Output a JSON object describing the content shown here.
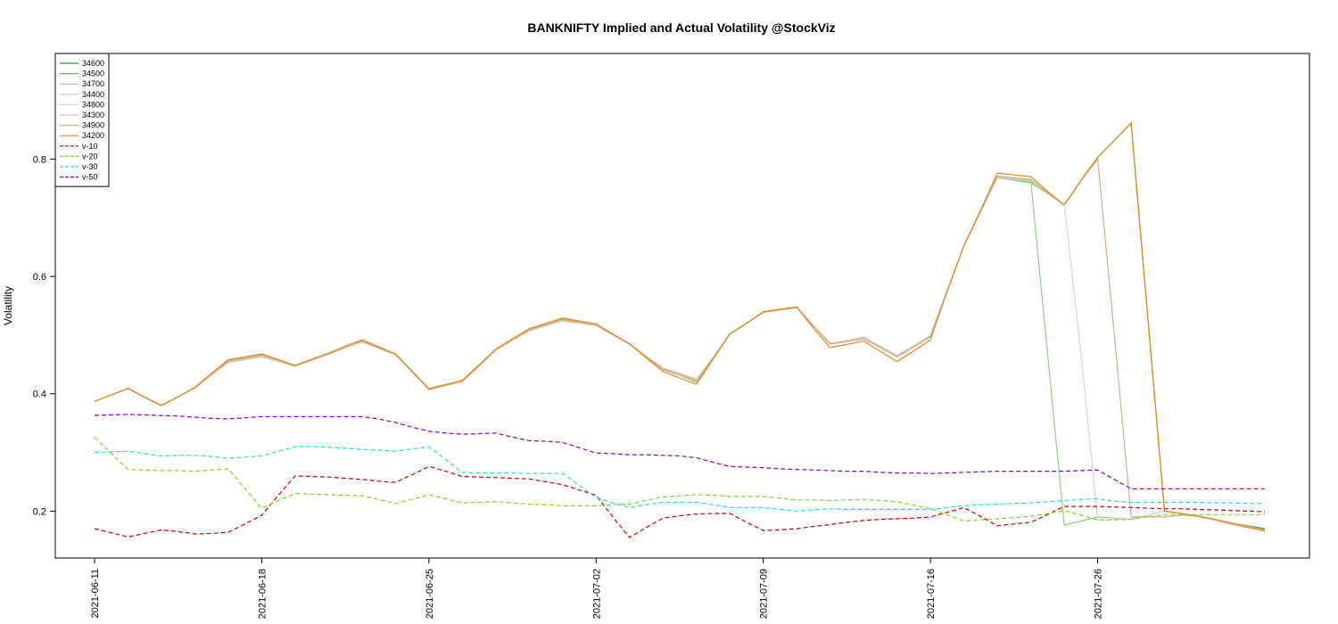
{
  "chart_data": {
    "type": "line",
    "title": "BANKNIFTY Implied and Actual Volatility @StockViz",
    "xlabel": "",
    "ylabel": "Volatility",
    "ylim": [
      0.12,
      0.98
    ],
    "yticks": [
      0.2,
      0.4,
      0.6,
      0.8
    ],
    "ytick_labels": [
      "0.2",
      "0.4",
      "0.6",
      "0.8"
    ],
    "xticks": [
      0,
      10,
      20,
      30,
      40,
      50,
      60
    ],
    "xtick_labels": [
      "2021-06-11",
      "2021-06-18",
      "2021-06-25",
      "2021-07-02",
      "2021-07-09",
      "2021-07-16",
      "2021-07-26"
    ],
    "x": [
      0,
      1,
      2,
      3,
      4,
      5,
      6,
      7,
      8,
      9,
      10,
      11,
      12,
      13,
      14,
      15,
      16,
      17,
      18,
      19,
      20,
      21,
      22,
      23,
      24,
      25,
      26,
      27,
      28,
      29,
      30,
      31,
      32,
      33,
      34,
      35,
      36,
      37,
      38,
      39,
      40,
      41,
      42,
      43,
      44,
      45,
      46,
      47,
      48,
      49,
      50,
      51,
      52,
      53,
      54,
      55,
      56,
      57,
      58,
      59,
      60,
      61,
      62,
      63,
      64,
      65,
      66,
      67,
      68,
      69,
      70
    ],
    "grid": false,
    "legend_position": "top-left",
    "series": [
      {
        "name": "34600",
        "color": "#1a9e35",
        "dash": "",
        "values": [
          0.387,
          0.398,
          0.409,
          0.394,
          0.38,
          0.395,
          0.41,
          0.434,
          0.456,
          0.461,
          0.466,
          0.457,
          0.448,
          0.459,
          0.469,
          0.481,
          0.49,
          0.479,
          0.468,
          0.438,
          0.409,
          0.416,
          0.422,
          0.449,
          0.476,
          0.493,
          0.509,
          0.518,
          0.527,
          0.523,
          0.518,
          0.501,
          0.485,
          0.463,
          0.441,
          0.432,
          0.42,
          0.461,
          0.502,
          0.52,
          0.539,
          0.543,
          0.547,
          0.516,
          0.485,
          0.489,
          0.494,
          0.479,
          0.463,
          0.48,
          0.497,
          0.575,
          0.652,
          0.711,
          0.769,
          0.766,
          0.763,
          0.742,
          0.722,
          0.763,
          0.803,
          0.832,
          0.86,
          0.53,
          0.2,
          0.196,
          0.192,
          0.186,
          0.18,
          0.175,
          0.17
        ]
      },
      {
        "name": "34500",
        "color": "#5cbf4d",
        "dash": "",
        "values": [
          0.387,
          0.398,
          0.409,
          0.394,
          0.38,
          0.395,
          0.41,
          0.433,
          0.455,
          0.46,
          0.465,
          0.456,
          0.448,
          0.458,
          0.468,
          0.48,
          0.489,
          0.478,
          0.468,
          0.438,
          0.409,
          0.416,
          0.422,
          0.449,
          0.476,
          0.493,
          0.509,
          0.518,
          0.526,
          0.522,
          0.518,
          0.501,
          0.485,
          0.463,
          0.442,
          0.433,
          0.422,
          0.461,
          0.502,
          0.52,
          0.539,
          0.543,
          0.547,
          0.516,
          0.486,
          0.489,
          0.495,
          0.48,
          0.464,
          0.48,
          0.498,
          0.576,
          0.652,
          0.711,
          0.768,
          0.764,
          0.76,
          0.741,
          0.722,
          0.763,
          0.803,
          0.832,
          0.86,
          0.53,
          0.2,
          0.196,
          0.192,
          0.186,
          0.18,
          0.174,
          0.168
        ]
      },
      {
        "name": "34700",
        "color": "#8fcf86",
        "dash": "",
        "values": [
          0.387,
          0.398,
          0.409,
          0.394,
          0.38,
          0.395,
          0.41,
          0.433,
          0.455,
          0.46,
          0.465,
          0.456,
          0.448,
          0.458,
          0.468,
          0.48,
          0.49,
          0.479,
          0.468,
          0.438,
          0.409,
          0.416,
          0.422,
          0.449,
          0.476,
          0.493,
          0.509,
          0.518,
          0.527,
          0.523,
          0.518,
          0.501,
          0.485,
          0.463,
          0.442,
          0.433,
          0.421,
          0.461,
          0.502,
          0.52,
          0.539,
          0.543,
          0.547,
          0.516,
          0.486,
          0.49,
          0.496,
          0.48,
          0.465,
          0.481,
          0.5,
          0.576,
          0.652,
          0.711,
          0.769,
          0.766,
          0.763,
          0.47,
          0.176,
          0.183,
          0.19,
          0.188,
          0.186,
          0.193,
          0.2,
          0.196,
          0.192,
          0.186,
          0.18,
          0.174,
          0.168
        ]
      },
      {
        "name": "34400",
        "color": "#b9d7b0",
        "dash": "",
        "values": [
          0.387,
          0.398,
          0.409,
          0.394,
          0.38,
          0.395,
          0.41,
          0.432,
          0.454,
          0.459,
          0.464,
          0.455,
          0.447,
          0.457,
          0.467,
          0.479,
          0.489,
          0.478,
          0.467,
          0.438,
          0.409,
          0.415,
          0.421,
          0.448,
          0.475,
          0.492,
          0.508,
          0.517,
          0.525,
          0.521,
          0.517,
          0.501,
          0.485,
          0.463,
          0.443,
          0.434,
          0.424,
          0.462,
          0.502,
          0.52,
          0.539,
          0.543,
          0.547,
          0.516,
          0.486,
          0.491,
          0.497,
          0.481,
          0.466,
          0.482,
          0.5,
          0.576,
          0.652,
          0.711,
          0.768,
          0.765,
          0.762,
          0.741,
          0.722,
          0.763,
          0.803,
          0.832,
          0.86,
          0.53,
          0.2,
          0.196,
          0.192,
          0.186,
          0.18,
          0.174,
          0.168
        ]
      },
      {
        "name": "34800",
        "color": "#d6d6d6",
        "dash": "",
        "values": [
          0.387,
          0.398,
          0.409,
          0.394,
          0.38,
          0.395,
          0.41,
          0.433,
          0.455,
          0.46,
          0.465,
          0.456,
          0.448,
          0.458,
          0.468,
          0.48,
          0.49,
          0.479,
          0.468,
          0.438,
          0.409,
          0.416,
          0.422,
          0.449,
          0.476,
          0.493,
          0.509,
          0.518,
          0.527,
          0.523,
          0.518,
          0.501,
          0.485,
          0.463,
          0.441,
          0.432,
          0.421,
          0.461,
          0.502,
          0.52,
          0.539,
          0.543,
          0.547,
          0.516,
          0.486,
          0.49,
          0.496,
          0.48,
          0.465,
          0.481,
          0.5,
          0.576,
          0.652,
          0.711,
          0.769,
          0.766,
          0.763,
          0.742,
          0.722,
          0.47,
          0.184,
          0.186,
          0.187,
          0.193,
          0.2,
          0.196,
          0.192,
          0.186,
          0.18,
          0.174,
          0.168
        ]
      },
      {
        "name": "34300",
        "color": "#d8c2b0",
        "dash": "",
        "values": [
          0.387,
          0.398,
          0.409,
          0.394,
          0.38,
          0.395,
          0.41,
          0.432,
          0.453,
          0.458,
          0.463,
          0.455,
          0.447,
          0.457,
          0.467,
          0.478,
          0.488,
          0.477,
          0.466,
          0.437,
          0.408,
          0.414,
          0.42,
          0.447,
          0.474,
          0.491,
          0.507,
          0.516,
          0.524,
          0.52,
          0.516,
          0.5,
          0.485,
          0.464,
          0.444,
          0.435,
          0.425,
          0.462,
          0.502,
          0.52,
          0.539,
          0.543,
          0.547,
          0.516,
          0.485,
          0.489,
          0.494,
          0.479,
          0.463,
          0.48,
          0.497,
          0.575,
          0.652,
          0.711,
          0.77,
          0.767,
          0.764,
          0.743,
          0.722,
          0.763,
          0.803,
          0.832,
          0.86,
          0.53,
          0.2,
          0.196,
          0.192,
          0.186,
          0.18,
          0.174,
          0.168
        ]
      },
      {
        "name": "34900",
        "color": "#d9a882",
        "dash": "",
        "values": [
          0.387,
          0.398,
          0.409,
          0.394,
          0.38,
          0.395,
          0.41,
          0.434,
          0.456,
          0.461,
          0.466,
          0.457,
          0.448,
          0.459,
          0.469,
          0.481,
          0.49,
          0.479,
          0.468,
          0.438,
          0.409,
          0.416,
          0.422,
          0.449,
          0.476,
          0.493,
          0.509,
          0.518,
          0.527,
          0.523,
          0.518,
          0.501,
          0.485,
          0.463,
          0.441,
          0.432,
          0.42,
          0.461,
          0.502,
          0.52,
          0.539,
          0.543,
          0.547,
          0.516,
          0.485,
          0.489,
          0.494,
          0.479,
          0.463,
          0.48,
          0.497,
          0.575,
          0.652,
          0.711,
          0.771,
          0.768,
          0.765,
          0.743,
          0.722,
          0.763,
          0.8,
          0.5,
          0.19,
          0.19,
          0.19,
          0.193,
          0.192,
          0.186,
          0.18,
          0.174,
          0.168
        ]
      },
      {
        "name": "34200",
        "color": "#e08a1e",
        "dash": "",
        "values": [
          0.387,
          0.398,
          0.409,
          0.394,
          0.38,
          0.395,
          0.411,
          0.435,
          0.458,
          0.463,
          0.468,
          0.458,
          0.448,
          0.459,
          0.469,
          0.481,
          0.492,
          0.48,
          0.468,
          0.438,
          0.407,
          0.415,
          0.423,
          0.449,
          0.476,
          0.494,
          0.511,
          0.52,
          0.529,
          0.524,
          0.519,
          0.502,
          0.485,
          0.461,
          0.438,
          0.427,
          0.416,
          0.459,
          0.502,
          0.52,
          0.54,
          0.544,
          0.548,
          0.512,
          0.479,
          0.484,
          0.49,
          0.472,
          0.455,
          0.473,
          0.492,
          0.575,
          0.652,
          0.713,
          0.776,
          0.773,
          0.77,
          0.745,
          0.722,
          0.764,
          0.803,
          0.832,
          0.862,
          0.53,
          0.2,
          0.196,
          0.191,
          0.185,
          0.178,
          0.172,
          0.166
        ]
      },
      {
        "name": "v-10",
        "color": "#cc0000",
        "dash": "5,3",
        "values": [
          0.17,
          0.163,
          0.156,
          0.162,
          0.168,
          0.165,
          0.161,
          0.162,
          0.164,
          0.178,
          0.193,
          0.227,
          0.26,
          0.259,
          0.258,
          0.256,
          0.254,
          0.251,
          0.249,
          0.262,
          0.276,
          0.268,
          0.259,
          0.258,
          0.257,
          0.256,
          0.255,
          0.25,
          0.245,
          0.236,
          0.227,
          0.19,
          0.155,
          0.172,
          0.188,
          0.192,
          0.195,
          0.196,
          0.196,
          0.181,
          0.167,
          0.168,
          0.17,
          0.174,
          0.177,
          0.181,
          0.184,
          0.186,
          0.187,
          0.188,
          0.19,
          0.198,
          0.206,
          0.191,
          0.175,
          0.178,
          0.181,
          0.194,
          0.208,
          0.208,
          0.208,
          0.207,
          0.206,
          0.205,
          0.204,
          0.204,
          0.203,
          0.202,
          0.201,
          0.2,
          0.199
        ]
      },
      {
        "name": "v-20",
        "color": "#88d61c",
        "dash": "5,3",
        "values": [
          0.326,
          0.298,
          0.271,
          0.27,
          0.269,
          0.269,
          0.268,
          0.27,
          0.272,
          0.238,
          0.205,
          0.218,
          0.23,
          0.229,
          0.228,
          0.227,
          0.226,
          0.22,
          0.213,
          0.22,
          0.228,
          0.221,
          0.214,
          0.215,
          0.216,
          0.214,
          0.212,
          0.211,
          0.209,
          0.209,
          0.209,
          0.211,
          0.212,
          0.218,
          0.224,
          0.226,
          0.228,
          0.227,
          0.225,
          0.225,
          0.225,
          0.222,
          0.219,
          0.219,
          0.218,
          0.219,
          0.22,
          0.218,
          0.216,
          0.21,
          0.204,
          0.194,
          0.183,
          0.185,
          0.187,
          0.189,
          0.191,
          0.196,
          0.201,
          0.193,
          0.185,
          0.185,
          0.186,
          0.19,
          0.194,
          0.194,
          0.194,
          0.194,
          0.194,
          0.194,
          0.194
        ]
      },
      {
        "name": "v-30",
        "color": "#22dcdc",
        "dash": "5,3",
        "values": [
          0.3,
          0.301,
          0.302,
          0.298,
          0.294,
          0.295,
          0.295,
          0.293,
          0.29,
          0.292,
          0.294,
          0.302,
          0.31,
          0.31,
          0.309,
          0.307,
          0.305,
          0.304,
          0.302,
          0.306,
          0.31,
          0.288,
          0.266,
          0.265,
          0.265,
          0.265,
          0.264,
          0.264,
          0.264,
          0.244,
          0.223,
          0.214,
          0.206,
          0.211,
          0.215,
          0.215,
          0.215,
          0.211,
          0.206,
          0.206,
          0.206,
          0.203,
          0.2,
          0.202,
          0.204,
          0.203,
          0.203,
          0.203,
          0.203,
          0.203,
          0.203,
          0.206,
          0.209,
          0.211,
          0.212,
          0.213,
          0.214,
          0.216,
          0.218,
          0.22,
          0.221,
          0.217,
          0.215,
          0.215,
          0.215,
          0.215,
          0.215,
          0.214,
          0.214,
          0.213,
          0.213
        ]
      },
      {
        "name": "v-50",
        "color": "#8800cc",
        "dash": "5,3",
        "values": [
          0.363,
          0.364,
          0.365,
          0.364,
          0.363,
          0.362,
          0.36,
          0.358,
          0.357,
          0.359,
          0.361,
          0.361,
          0.361,
          0.361,
          0.361,
          0.361,
          0.361,
          0.357,
          0.351,
          0.343,
          0.336,
          0.333,
          0.331,
          0.332,
          0.333,
          0.326,
          0.32,
          0.319,
          0.317,
          0.308,
          0.299,
          0.298,
          0.296,
          0.296,
          0.295,
          0.294,
          0.291,
          0.283,
          0.276,
          0.275,
          0.274,
          0.272,
          0.271,
          0.27,
          0.269,
          0.268,
          0.268,
          0.266,
          0.265,
          0.265,
          0.264,
          0.265,
          0.266,
          0.267,
          0.268,
          0.268,
          0.268,
          0.268,
          0.268,
          0.269,
          0.27,
          0.254,
          0.238,
          0.238,
          0.238,
          0.238,
          0.238,
          0.238,
          0.238,
          0.238,
          0.238
        ]
      }
    ]
  }
}
